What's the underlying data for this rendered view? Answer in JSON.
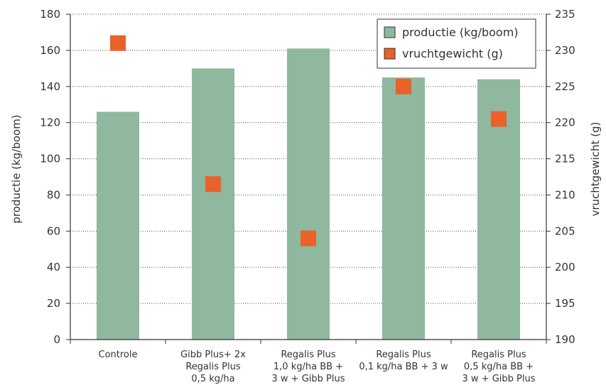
{
  "chart_data": {
    "type": "bar",
    "categories": [
      [
        "Controle"
      ],
      [
        "Gibb Plus+ 2x",
        "Regalis Plus",
        "0,5 kg/ha"
      ],
      [
        "Regalis Plus",
        "1,0 kg/ha BB +",
        "3 w + Gibb Plus"
      ],
      [
        "Regalis Plus",
        "0,1 kg/ha BB + 3 w"
      ],
      [
        "Regalis Plus",
        "0,5 kg/ha BB +",
        "3 w + Gibb Plus"
      ]
    ],
    "series": [
      {
        "name": "productie (kg/boom)",
        "type": "bar",
        "axis": "left",
        "color": "#8fb89e",
        "values": [
          126,
          150,
          161,
          145,
          144
        ]
      },
      {
        "name": "vruchtgewicht (g)",
        "type": "scatter",
        "axis": "right",
        "color": "#e8622a",
        "values": [
          231,
          211.5,
          204,
          225,
          220.5
        ]
      }
    ],
    "ylabel": "productie (kg/boom)",
    "y2label": "vruchtgewicht (g)",
    "ylim": [
      0,
      180
    ],
    "y2lim": [
      190,
      235
    ],
    "yticks": [
      0,
      20,
      40,
      60,
      80,
      100,
      120,
      140,
      160,
      180
    ],
    "y2ticks": [
      190,
      195,
      200,
      205,
      210,
      215,
      220,
      225,
      230,
      235
    ],
    "grid": true,
    "legend_position": "top-right"
  }
}
